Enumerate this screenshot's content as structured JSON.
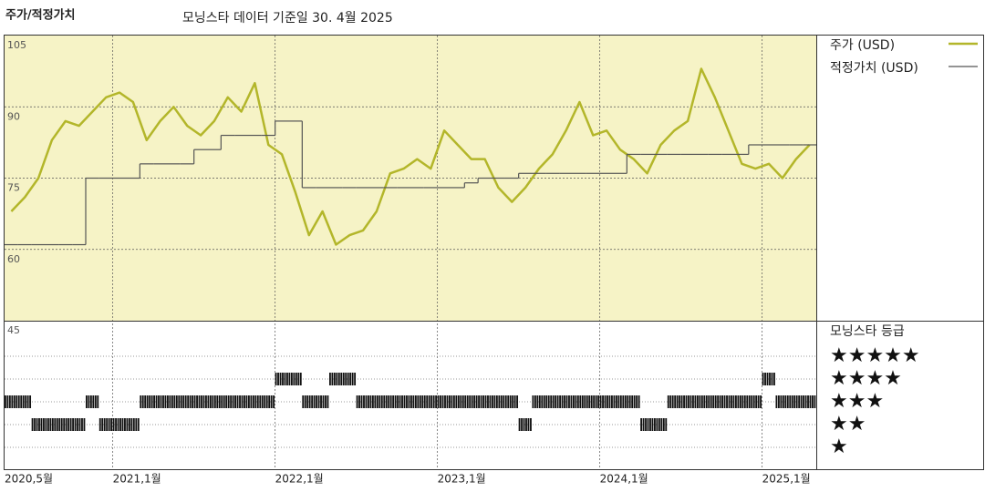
{
  "chart_data": {
    "type": "line",
    "title": "주가/적정가치",
    "subtitle": "모닝스타 데이터 기준일 30. 4월 2025",
    "x": [
      "2020-05",
      "2020-06",
      "2020-07",
      "2020-08",
      "2020-09",
      "2020-10",
      "2020-11",
      "2020-12",
      "2021-01",
      "2021-02",
      "2021-03",
      "2021-04",
      "2021-05",
      "2021-06",
      "2021-07",
      "2021-08",
      "2021-09",
      "2021-10",
      "2021-11",
      "2021-12",
      "2022-01",
      "2022-02",
      "2022-03",
      "2022-04",
      "2022-05",
      "2022-06",
      "2022-07",
      "2022-08",
      "2022-09",
      "2022-10",
      "2022-11",
      "2022-12",
      "2023-01",
      "2023-02",
      "2023-03",
      "2023-04",
      "2023-05",
      "2023-06",
      "2023-07",
      "2023-08",
      "2023-09",
      "2023-10",
      "2023-11",
      "2023-12",
      "2024-01",
      "2024-02",
      "2024-03",
      "2024-04",
      "2024-05",
      "2024-06",
      "2024-07",
      "2024-08",
      "2024-09",
      "2024-10",
      "2024-11",
      "2024-12",
      "2025-01",
      "2025-02",
      "2025-03",
      "2025-04"
    ],
    "series": [
      {
        "name": "주가 (USD)",
        "color": "#b3b62a",
        "step": false,
        "values": [
          68,
          71,
          75,
          83,
          87,
          86,
          89,
          92,
          93,
          91,
          83,
          87,
          90,
          86,
          84,
          87,
          92,
          89,
          95,
          82,
          80,
          72,
          63,
          68,
          61,
          63,
          64,
          68,
          76,
          77,
          79,
          77,
          85,
          82,
          79,
          79,
          73,
          70,
          73,
          77,
          80,
          85,
          91,
          84,
          85,
          81,
          79,
          76,
          82,
          85,
          87,
          98,
          92,
          85,
          78,
          77,
          78,
          75,
          79,
          82
        ]
      },
      {
        "name": "적정가치 (USD)",
        "color": "#555555",
        "step": true,
        "values": [
          61,
          61,
          61,
          61,
          61,
          61,
          75,
          75,
          75,
          75,
          78,
          78,
          78,
          78,
          81,
          81,
          84,
          84,
          84,
          84,
          87,
          87,
          73,
          73,
          73,
          73,
          73,
          73,
          73,
          73,
          73,
          73,
          73,
          73,
          74,
          75,
          75,
          75,
          76,
          76,
          76,
          76,
          76,
          76,
          76,
          76,
          80,
          80,
          80,
          80,
          80,
          80,
          80,
          80,
          80,
          82,
          82,
          82,
          82,
          82
        ]
      }
    ],
    "ylim": [
      45,
      105
    ],
    "yticks": [
      45,
      60,
      75,
      90,
      105
    ],
    "xticks": [
      {
        "value": "2020-05",
        "label": "2020,5월"
      },
      {
        "value": "2021-01",
        "label": "2021,1월"
      },
      {
        "value": "2022-01",
        "label": "2022,1월"
      },
      {
        "value": "2023-01",
        "label": "2023,1월"
      },
      {
        "value": "2024-01",
        "label": "2024,1월"
      },
      {
        "value": "2025-01",
        "label": "2025,1월"
      }
    ],
    "grid": true,
    "ratings": {
      "title": "모닝스타 등급",
      "labels": [
        "★★★★★",
        "★★★★",
        "★★★",
        "★★",
        "★"
      ],
      "levels": [
        5,
        4,
        3,
        2,
        1
      ],
      "color": "#111111",
      "values": [
        3,
        3,
        2,
        2,
        2,
        2,
        3,
        2,
        2,
        2,
        3,
        3,
        3,
        3,
        3,
        3,
        3,
        3,
        3,
        3,
        4,
        4,
        3,
        3,
        4,
        4,
        3,
        3,
        3,
        3,
        3,
        3,
        3,
        3,
        3,
        3,
        3,
        3,
        2,
        3,
        3,
        3,
        3,
        3,
        3,
        3,
        3,
        2,
        2,
        3,
        3,
        3,
        3,
        3,
        3,
        3,
        4,
        3,
        3,
        3
      ]
    }
  }
}
